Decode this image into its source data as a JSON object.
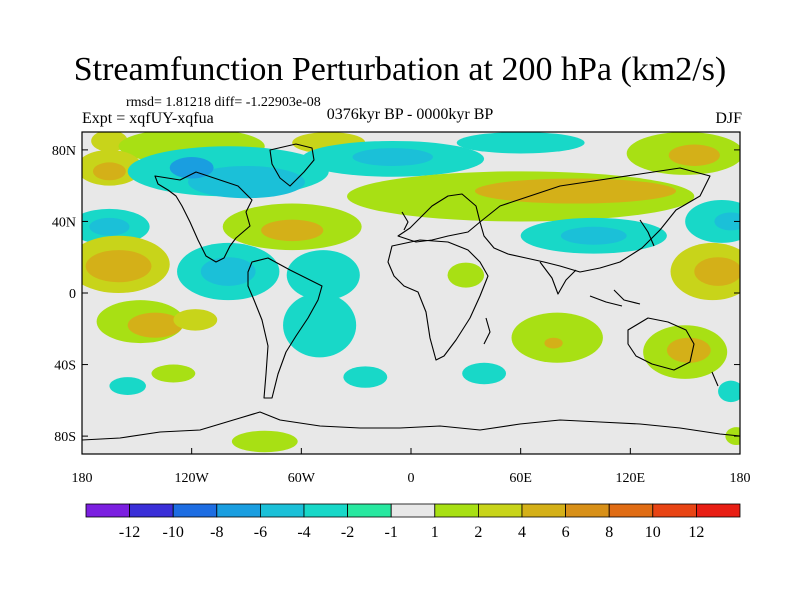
{
  "header": {
    "title": "Streamfunction Perturbation at 200 hPa (km2/s)",
    "stats": "rmsd= 1.81218 diff= -1.22903e-08",
    "experiment": "Expt = xqfUY-xqfua",
    "period": "0376kyr BP - 0000kyr BP",
    "season": "DJF"
  },
  "map": {
    "projection": "cylindrical equidistant",
    "background_color": "#e8e8e8",
    "coastline_color": "#000000",
    "lon_range": [
      -180,
      180
    ],
    "lat_range": [
      -90,
      90
    ],
    "lon_ticks": [
      {
        "value": -180,
        "label": "180"
      },
      {
        "value": -120,
        "label": "120W"
      },
      {
        "value": -60,
        "label": "60W"
      },
      {
        "value": 0,
        "label": "0"
      },
      {
        "value": 60,
        "label": "60E"
      },
      {
        "value": 120,
        "label": "120E"
      },
      {
        "value": 180,
        "label": "180"
      }
    ],
    "lat_ticks": [
      {
        "value": 80,
        "label": "80N"
      },
      {
        "value": 40,
        "label": "40N"
      },
      {
        "value": 0,
        "label": "0"
      },
      {
        "value": -40,
        "label": "40S"
      },
      {
        "value": -80,
        "label": "80S"
      }
    ],
    "anomalies": [
      {
        "lon": -165,
        "lat": 85,
        "rx": 10,
        "ry": 6,
        "level": 2
      },
      {
        "lon": -120,
        "lat": 82,
        "rx": 40,
        "ry": 10,
        "level": 1
      },
      {
        "lon": -45,
        "lat": 84,
        "rx": 20,
        "ry": 6,
        "level": 2
      },
      {
        "lon": -165,
        "lat": 70,
        "rx": 18,
        "ry": 10,
        "level": 2
      },
      {
        "lon": -165,
        "lat": 68,
        "rx": 9,
        "ry": 5,
        "level": 4
      },
      {
        "lon": -100,
        "lat": 68,
        "rx": 55,
        "ry": 14,
        "level": -2
      },
      {
        "lon": -90,
        "lat": 62,
        "rx": 32,
        "ry": 9,
        "level": -4
      },
      {
        "lon": -120,
        "lat": 70,
        "rx": 12,
        "ry": 6,
        "level": -6
      },
      {
        "lon": -10,
        "lat": 75,
        "rx": 50,
        "ry": 10,
        "level": -2
      },
      {
        "lon": -10,
        "lat": 76,
        "rx": 22,
        "ry": 5,
        "level": -4
      },
      {
        "lon": 60,
        "lat": 84,
        "rx": 35,
        "ry": 6,
        "level": -2
      },
      {
        "lon": 60,
        "lat": 54,
        "rx": 95,
        "ry": 14,
        "level": 1
      },
      {
        "lon": 90,
        "lat": 57,
        "rx": 55,
        "ry": 7,
        "level": 4
      },
      {
        "lon": 150,
        "lat": 78,
        "rx": 32,
        "ry": 12,
        "level": 1
      },
      {
        "lon": 155,
        "lat": 77,
        "rx": 14,
        "ry": 6,
        "level": 4
      },
      {
        "lon": 100,
        "lat": 32,
        "rx": 40,
        "ry": 10,
        "level": -2
      },
      {
        "lon": 100,
        "lat": 32,
        "rx": 18,
        "ry": 5,
        "level": -4
      },
      {
        "lon": -65,
        "lat": 37,
        "rx": 38,
        "ry": 13,
        "level": 1
      },
      {
        "lon": -65,
        "lat": 35,
        "rx": 17,
        "ry": 6,
        "level": 4
      },
      {
        "lon": -165,
        "lat": 37,
        "rx": 22,
        "ry": 10,
        "level": -2
      },
      {
        "lon": -165,
        "lat": 37,
        "rx": 11,
        "ry": 5,
        "level": -4
      },
      {
        "lon": 170,
        "lat": 40,
        "rx": 20,
        "ry": 12,
        "level": -2
      },
      {
        "lon": 175,
        "lat": 40,
        "rx": 9,
        "ry": 5,
        "level": -4
      },
      {
        "lon": -160,
        "lat": 16,
        "rx": 28,
        "ry": 16,
        "level": 2
      },
      {
        "lon": -160,
        "lat": 15,
        "rx": 18,
        "ry": 9,
        "level": 4
      },
      {
        "lon": 165,
        "lat": 12,
        "rx": 23,
        "ry": 16,
        "level": 2
      },
      {
        "lon": 168,
        "lat": 12,
        "rx": 13,
        "ry": 8,
        "level": 4
      },
      {
        "lon": -100,
        "lat": 12,
        "rx": 28,
        "ry": 16,
        "level": -2
      },
      {
        "lon": -100,
        "lat": 12,
        "rx": 15,
        "ry": 8,
        "level": -4
      },
      {
        "lon": -48,
        "lat": 10,
        "rx": 20,
        "ry": 14,
        "level": -2
      },
      {
        "lon": -50,
        "lat": -18,
        "rx": 20,
        "ry": 18,
        "level": -2
      },
      {
        "lon": -148,
        "lat": -16,
        "rx": 24,
        "ry": 12,
        "level": 1
      },
      {
        "lon": -140,
        "lat": -18,
        "rx": 15,
        "ry": 7,
        "level": 4
      },
      {
        "lon": -118,
        "lat": -15,
        "rx": 12,
        "ry": 6,
        "level": 2
      },
      {
        "lon": 30,
        "lat": 10,
        "rx": 10,
        "ry": 7,
        "level": 1
      },
      {
        "lon": 80,
        "lat": -25,
        "rx": 25,
        "ry": 14,
        "level": 1
      },
      {
        "lon": 78,
        "lat": -28,
        "rx": 5,
        "ry": 3,
        "level": 4
      },
      {
        "lon": 150,
        "lat": -33,
        "rx": 23,
        "ry": 15,
        "level": 1
      },
      {
        "lon": 152,
        "lat": -32,
        "rx": 12,
        "ry": 7,
        "level": 4
      },
      {
        "lon": -130,
        "lat": -45,
        "rx": 12,
        "ry": 5,
        "level": 1
      },
      {
        "lon": -155,
        "lat": -52,
        "rx": 10,
        "ry": 5,
        "level": -2
      },
      {
        "lon": -25,
        "lat": -47,
        "rx": 12,
        "ry": 6,
        "level": -2
      },
      {
        "lon": 40,
        "lat": -45,
        "rx": 12,
        "ry": 6,
        "level": -2
      },
      {
        "lon": 175,
        "lat": -55,
        "rx": 7,
        "ry": 6,
        "level": -2
      },
      {
        "lon": -80,
        "lat": -83,
        "rx": 18,
        "ry": 6,
        "level": 1
      },
      {
        "lon": 178,
        "lat": -80,
        "rx": 6,
        "ry": 5,
        "level": 1
      }
    ]
  },
  "colorbar": {
    "colors": [
      "#7b1fe0",
      "#3a2fd8",
      "#1d6de2",
      "#1a9ee0",
      "#1bc0d8",
      "#18d8c8",
      "#28e8a0",
      "#e8e8e8",
      "#a8e014",
      "#c8d41a",
      "#d4b018",
      "#d89018",
      "#e06c14",
      "#e84414",
      "#e81e14"
    ],
    "tick_labels": [
      "-12",
      "-10",
      "-8",
      "-6",
      "-4",
      "-2",
      "-1",
      "1",
      "2",
      "4",
      "6",
      "8",
      "10",
      "12"
    ]
  }
}
